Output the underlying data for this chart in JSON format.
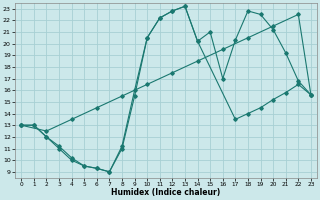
{
  "xlabel": "Humidex (Indice chaleur)",
  "bg_color": "#cce8ea",
  "grid_color": "#a8d0d4",
  "line_color": "#1a7870",
  "xlim": [
    -0.5,
    23.5
  ],
  "ylim": [
    8.5,
    23.5
  ],
  "xticks": [
    0,
    1,
    2,
    3,
    4,
    5,
    6,
    7,
    8,
    9,
    10,
    11,
    12,
    13,
    14,
    15,
    16,
    17,
    18,
    19,
    20,
    21,
    22,
    23
  ],
  "yticks": [
    9,
    10,
    11,
    12,
    13,
    14,
    15,
    16,
    17,
    18,
    19,
    20,
    21,
    22,
    23
  ],
  "line1_x": [
    0,
    1,
    2,
    3,
    4,
    5,
    6,
    7,
    8,
    9,
    10,
    11,
    12,
    13,
    14,
    15,
    16,
    17,
    18,
    19,
    20,
    21,
    22,
    23
  ],
  "line1_y": [
    13,
    13,
    12,
    11,
    10,
    9.5,
    9.3,
    9,
    11,
    15.5,
    20.5,
    22.2,
    22.8,
    23.2,
    20.2,
    21,
    17,
    20.3,
    22.8,
    22.5,
    21.2,
    19.2,
    16.8,
    15.6
  ],
  "line2_x": [
    0,
    2,
    4,
    6,
    8,
    10,
    12,
    14,
    16,
    18,
    20,
    22,
    23
  ],
  "line2_y": [
    13,
    12.5,
    13.5,
    14.5,
    15.5,
    16.5,
    17.5,
    18.5,
    19.5,
    20.5,
    21.5,
    22.5,
    15.6
  ],
  "line3_x": [
    0,
    1,
    2,
    3,
    4,
    5,
    6,
    7,
    8,
    9,
    10,
    11,
    12,
    13,
    14,
    17,
    18,
    19,
    20,
    21,
    22,
    23
  ],
  "line3_y": [
    13,
    13,
    12,
    11.2,
    10.2,
    9.5,
    9.3,
    9,
    11.2,
    16,
    20.5,
    22.2,
    22.8,
    23.2,
    20.2,
    13.5,
    14,
    14.5,
    15.2,
    15.8,
    16.5,
    15.6
  ]
}
